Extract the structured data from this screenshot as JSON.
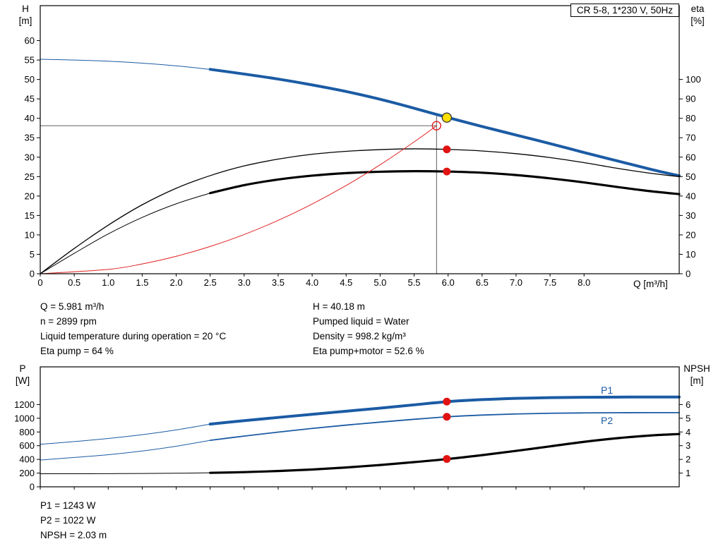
{
  "chart_data": [
    {
      "type": "line",
      "name": "pump-performance-curve",
      "title": "CR 5-8, 1*230 V, 50Hz",
      "x": {
        "label": "Q [m³/h]",
        "min": 0,
        "max": 9.4,
        "ticks": [
          0,
          0.5,
          1,
          1.5,
          2,
          2.5,
          3,
          3.5,
          4,
          4.5,
          5,
          5.5,
          6,
          6.5,
          7,
          7.5,
          8
        ],
        "tick_labels": [
          "0",
          "0.5",
          "1.0",
          "1.5",
          "2.0",
          "2.5",
          "3.0",
          "3.5",
          "4.0",
          "4.5",
          "5.0",
          "5.5",
          "6.0",
          "6.5",
          "7.0",
          "7.5",
          "8.0"
        ]
      },
      "y_left": {
        "name": "H",
        "unit": "[m]",
        "min": 0,
        "max": 69,
        "ticks": [
          0,
          5,
          10,
          15,
          20,
          25,
          30,
          35,
          40,
          45,
          50,
          55,
          60
        ]
      },
      "y_right": {
        "name": "eta",
        "unit": "[%]",
        "min": 0,
        "max": 138,
        "ticks": [
          0,
          10,
          20,
          30,
          40,
          50,
          60,
          70,
          80,
          90,
          100
        ]
      },
      "crosshair": {
        "x": 5.83,
        "h": 38.1,
        "v_top": 40.6
      },
      "series": [
        {
          "name": "head-curve-thin",
          "axis": "left",
          "color": "#1b5ba4",
          "width": 1,
          "points": [
            [
              0,
              55.2
            ],
            [
              0.5,
              55.0
            ],
            [
              1,
              54.7
            ],
            [
              1.5,
              54.2
            ],
            [
              2,
              53.5
            ],
            [
              2.5,
              52.6
            ]
          ]
        },
        {
          "name": "head-curve",
          "axis": "left",
          "color": "#1b5ba4",
          "width": 4,
          "points": [
            [
              2.5,
              52.6
            ],
            [
              3,
              51.4
            ],
            [
              3.5,
              50.1
            ],
            [
              4,
              48.6
            ],
            [
              4.5,
              46.9
            ],
            [
              5,
              44.9
            ],
            [
              5.5,
              42.6
            ],
            [
              6,
              40.18
            ],
            [
              6.5,
              37.9
            ],
            [
              7,
              35.7
            ],
            [
              7.5,
              33.5
            ],
            [
              8,
              31.2
            ],
            [
              8.5,
              29.0
            ],
            [
              9,
              26.8
            ],
            [
              9.4,
              25.2
            ]
          ]
        },
        {
          "name": "eta-pump-curve",
          "axis": "right",
          "color": "#000000",
          "width": 1.3,
          "points": [
            [
              0,
              0
            ],
            [
              0.5,
              13
            ],
            [
              1,
              25
            ],
            [
              1.5,
              35.5
            ],
            [
              2,
              44
            ],
            [
              2.5,
              50.5
            ],
            [
              3,
              55.5
            ],
            [
              3.5,
              59
            ],
            [
              4,
              61.5
            ],
            [
              4.5,
              63
            ],
            [
              5,
              63.9
            ],
            [
              5.5,
              64.3
            ],
            [
              6,
              64
            ],
            [
              6.5,
              63.2
            ],
            [
              7,
              61.8
            ],
            [
              7.5,
              59.8
            ],
            [
              8,
              57.2
            ],
            [
              8.5,
              54.2
            ],
            [
              9,
              51.6
            ],
            [
              9.4,
              50
            ]
          ]
        },
        {
          "name": "eta-pump-motor-curve-thin",
          "axis": "right",
          "color": "#000000",
          "width": 1,
          "points": [
            [
              0,
              0
            ],
            [
              0.5,
              10.5
            ],
            [
              1,
              20.5
            ],
            [
              1.5,
              29
            ],
            [
              2,
              36
            ],
            [
              2.5,
              41.5
            ]
          ]
        },
        {
          "name": "eta-pump-motor-curve",
          "axis": "right",
          "color": "#000000",
          "width": 3.2,
          "points": [
            [
              2.5,
              41.5
            ],
            [
              3,
              45.6
            ],
            [
              3.5,
              48.5
            ],
            [
              4,
              50.5
            ],
            [
              4.5,
              51.8
            ],
            [
              5,
              52.5
            ],
            [
              5.5,
              52.8
            ],
            [
              6,
              52.6
            ],
            [
              6.5,
              52
            ],
            [
              7,
              50.8
            ],
            [
              7.5,
              49.1
            ],
            [
              8,
              47
            ],
            [
              8.5,
              44.6
            ],
            [
              9,
              42.4
            ],
            [
              9.4,
              41
            ]
          ]
        },
        {
          "name": "system-curve",
          "axis": "left",
          "color": "#e02020",
          "width": 1,
          "points": [
            [
              0,
              0
            ],
            [
              1,
              1.12
            ],
            [
              1.5,
              2.52
            ],
            [
              2,
              4.49
            ],
            [
              2.5,
              7.01
            ],
            [
              3,
              10.09
            ],
            [
              3.5,
              13.74
            ],
            [
              4,
              17.95
            ],
            [
              4.5,
              22.71
            ],
            [
              5,
              28.04
            ],
            [
              5.5,
              33.93
            ],
            [
              5.83,
              38.1
            ]
          ]
        }
      ],
      "markers": [
        {
          "name": "duty-point-marker",
          "x": 5.83,
          "y": 38.1,
          "axis": "left",
          "r": 6,
          "fill": "none",
          "stroke": "#e02020",
          "sw": 1.4
        },
        {
          "name": "operating-point-marker",
          "x": 5.981,
          "y": 40.18,
          "axis": "left",
          "r": 6.5,
          "fill": "#ffdf00",
          "stroke": "#3a3a3a",
          "sw": 1.4
        },
        {
          "name": "eta-pump-point-marker",
          "x": 5.981,
          "y": 64,
          "axis": "right",
          "r": 5.5,
          "fill": "#e01212",
          "stroke": "none",
          "sw": 0
        },
        {
          "name": "eta-pump-motor-point-marker",
          "x": 5.981,
          "y": 52.6,
          "axis": "right",
          "r": 5.5,
          "fill": "#e01212",
          "stroke": "none",
          "sw": 0
        }
      ]
    },
    {
      "type": "line",
      "name": "power-npsh-curve",
      "x": {
        "label": "",
        "min": 0,
        "max": 9.4,
        "ticks": [
          0,
          0.5,
          1,
          1.5,
          2,
          2.5,
          3,
          3.5,
          4,
          4.5,
          5,
          5.5,
          6,
          6.5,
          7,
          7.5,
          8
        ],
        "tick_labels": null
      },
      "y_left": {
        "name": "P",
        "unit": "[W]",
        "min": 0,
        "max": 1750,
        "ticks": [
          0,
          200,
          400,
          600,
          800,
          1000,
          1200
        ]
      },
      "y_right": {
        "name": "NPSH",
        "unit": "[m]",
        "min": 0,
        "max": 8.75,
        "ticks": [
          1,
          2,
          3,
          4,
          5,
          6
        ]
      },
      "curve_labels": [
        {
          "text": "P1"
        },
        {
          "text": "P2"
        }
      ],
      "series": [
        {
          "name": "p1-curve-thin",
          "axis": "left",
          "color": "#1b5ba4",
          "width": 1,
          "points": [
            [
              0,
              620
            ],
            [
              0.5,
              660
            ],
            [
              1,
              705
            ],
            [
              1.5,
              760
            ],
            [
              2,
              830
            ],
            [
              2.5,
              915
            ]
          ]
        },
        {
          "name": "p1-curve",
          "axis": "left",
          "color": "#1b5ba4",
          "width": 4,
          "points": [
            [
              2.5,
              915
            ],
            [
              3,
              965
            ],
            [
              3.5,
              1012
            ],
            [
              4,
              1058
            ],
            [
              4.5,
              1103
            ],
            [
              5,
              1148
            ],
            [
              5.5,
              1196
            ],
            [
              6,
              1243
            ],
            [
              6.5,
              1272
            ],
            [
              7,
              1291
            ],
            [
              7.5,
              1301
            ],
            [
              8,
              1306
            ],
            [
              8.5,
              1309
            ],
            [
              9,
              1310
            ],
            [
              9.4,
              1310
            ]
          ]
        },
        {
          "name": "p2-curve-thin",
          "axis": "left",
          "color": "#1b5ba4",
          "width": 1,
          "points": [
            [
              0,
              390
            ],
            [
              0.5,
              428
            ],
            [
              1,
              468
            ],
            [
              1.5,
              522
            ],
            [
              2,
              592
            ],
            [
              2.5,
              678
            ]
          ]
        },
        {
          "name": "p2-curve",
          "axis": "left",
          "color": "#1b5ba4",
          "width": 1.8,
          "points": [
            [
              2.5,
              678
            ],
            [
              3,
              740
            ],
            [
              3.5,
              798
            ],
            [
              4,
              852
            ],
            [
              4.5,
              900
            ],
            [
              5,
              944
            ],
            [
              5.5,
              985
            ],
            [
              6,
              1022
            ],
            [
              6.5,
              1047
            ],
            [
              7,
              1063
            ],
            [
              7.5,
              1073
            ],
            [
              8,
              1078
            ],
            [
              8.5,
              1081
            ],
            [
              9,
              1082
            ],
            [
              9.4,
              1082
            ]
          ]
        },
        {
          "name": "npsh-curve-thin",
          "axis": "right",
          "color": "#000000",
          "width": 1,
          "points": [
            [
              0,
              0.95
            ],
            [
              0.5,
              0.95
            ],
            [
              1,
              0.96
            ],
            [
              1.5,
              0.97
            ],
            [
              2,
              0.99
            ],
            [
              2.5,
              1.02
            ]
          ]
        },
        {
          "name": "npsh-curve",
          "axis": "right",
          "color": "#000000",
          "width": 3.2,
          "points": [
            [
              2.5,
              1.02
            ],
            [
              3,
              1.07
            ],
            [
              3.5,
              1.15
            ],
            [
              4,
              1.26
            ],
            [
              4.5,
              1.41
            ],
            [
              5,
              1.59
            ],
            [
              5.5,
              1.8
            ],
            [
              6,
              2.03
            ],
            [
              6.5,
              2.31
            ],
            [
              7,
              2.62
            ],
            [
              7.5,
              2.95
            ],
            [
              8,
              3.28
            ],
            [
              8.5,
              3.55
            ],
            [
              9,
              3.75
            ],
            [
              9.4,
              3.85
            ]
          ]
        }
      ],
      "markers": [
        {
          "name": "p1-point-marker",
          "x": 5.981,
          "y": 1243,
          "axis": "left",
          "r": 5.5,
          "fill": "#e01212",
          "stroke": "none",
          "sw": 0
        },
        {
          "name": "p2-point-marker",
          "x": 5.981,
          "y": 1022,
          "axis": "left",
          "r": 5.5,
          "fill": "#e01212",
          "stroke": "none",
          "sw": 0
        },
        {
          "name": "npsh-point-marker",
          "x": 5.981,
          "y": 2.03,
          "axis": "right",
          "r": 5.5,
          "fill": "#e01212",
          "stroke": "none",
          "sw": 0
        }
      ]
    }
  ],
  "operating_data": {
    "left": [
      "Q = 5.981 m³/h",
      "n = 2899 rpm",
      "Liquid temperature during operation = 20 °C",
      "Eta pump = 64 %"
    ],
    "right": [
      "H = 40.18 m",
      "Pumped liquid = Water",
      "Density = 998.2 kg/m³",
      "Eta pump+motor = 52.6 %"
    ],
    "bottom": [
      "P1 = 1243 W",
      "P2 = 1022 W",
      "NPSH = 2.03 m"
    ]
  }
}
